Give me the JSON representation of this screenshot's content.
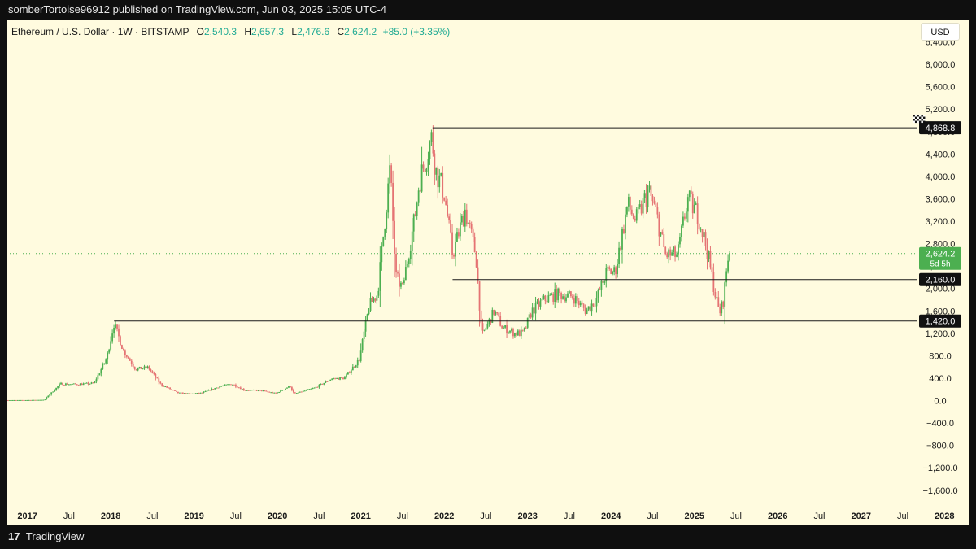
{
  "header": {
    "publisher_line": "somberTortoise96912 published on TradingView.com, Jun 03, 2025 15:05 UTC-4"
  },
  "legend": {
    "symbol": "Ethereum / U.S. Dollar · 1W · BITSTAMP",
    "open_label": "O",
    "open": "2,540.3",
    "high_label": "H",
    "high": "2,657.3",
    "low_label": "L",
    "low": "2,476.6",
    "close_label": "C",
    "close": "2,624.2",
    "change": "+85.0 (+3.35%)"
  },
  "currency_button": "USD",
  "price_badge": {
    "value": "2,624.2",
    "countdown": "5d 5h"
  },
  "footer": {
    "logo_mark": "17",
    "brand": "TradingView"
  },
  "colors": {
    "background": "#fffbdf",
    "up": "#4caf50",
    "down": "#e57373",
    "level_line": "#1a1a1a",
    "current_price": "#4caf50"
  },
  "icons": {
    "target_flag": "checkered-flag-icon"
  },
  "chart_data": {
    "type": "candlestick",
    "symbol": "ETHUSD",
    "interval": "1W",
    "y_axis": {
      "labels": [
        "6,400.0",
        "6,000.0",
        "5,600.0",
        "5,200.0",
        "4,800.0",
        "4,400.0",
        "4,000.0",
        "3,600.0",
        "3,200.0",
        "2,800.0",
        "2,400.0",
        "2,000.0",
        "1,600.0",
        "1,200.0",
        "800.0",
        "400.0",
        "0.0",
        "−400.0",
        "−800.0",
        "−1,200.0",
        "−1,600.0"
      ],
      "ticks": [
        6400,
        6000,
        5600,
        5200,
        4800,
        4400,
        4000,
        3600,
        3200,
        2800,
        2400,
        2000,
        1600,
        1200,
        800,
        400,
        0,
        -400,
        -800,
        -1200,
        -1600
      ],
      "ylim": [
        -1850,
        6800
      ]
    },
    "x_axis": {
      "labels": [
        "2017",
        "Jul",
        "2018",
        "Jul",
        "2019",
        "Jul",
        "2020",
        "Jul",
        "2021",
        "Jul",
        "2022",
        "Jul",
        "2023",
        "Jul",
        "2024",
        "Jul",
        "2025",
        "Jul",
        "2026",
        "Jul",
        "2027",
        "Jul",
        "2028"
      ],
      "ticks": [
        2017.0,
        2017.5,
        2018.0,
        2018.5,
        2019.0,
        2019.5,
        2020.0,
        2020.5,
        2021.0,
        2021.5,
        2022.0,
        2022.5,
        2023.0,
        2023.5,
        2024.0,
        2024.5,
        2025.0,
        2025.5,
        2026.0,
        2026.5,
        2027.0,
        2027.5,
        2028.0
      ],
      "bold": [
        "2017",
        "2018",
        "2019",
        "2020",
        "2021",
        "2022",
        "2023",
        "2024",
        "2025",
        "2026",
        "2027",
        "2028"
      ],
      "xlim": [
        2016.75,
        2028.3
      ]
    },
    "price_path": [
      [
        2016.75,
        8
      ],
      [
        2017.0,
        9
      ],
      [
        2017.2,
        14
      ],
      [
        2017.4,
        300
      ],
      [
        2017.6,
        290
      ],
      [
        2017.8,
        310
      ],
      [
        2017.95,
        750
      ],
      [
        2018.04,
        1380
      ],
      [
        2018.15,
        900
      ],
      [
        2018.3,
        560
      ],
      [
        2018.45,
        590
      ],
      [
        2018.6,
        290
      ],
      [
        2018.8,
        140
      ],
      [
        2018.95,
        120
      ],
      [
        2019.1,
        140
      ],
      [
        2019.3,
        250
      ],
      [
        2019.45,
        300
      ],
      [
        2019.6,
        190
      ],
      [
        2019.8,
        180
      ],
      [
        2019.98,
        130
      ],
      [
        2020.15,
        260
      ],
      [
        2020.2,
        120
      ],
      [
        2020.45,
        230
      ],
      [
        2020.65,
        390
      ],
      [
        2020.8,
        400
      ],
      [
        2020.98,
        730
      ],
      [
        2021.1,
        1700
      ],
      [
        2021.2,
        1900
      ],
      [
        2021.35,
        4150
      ],
      [
        2021.42,
        2200
      ],
      [
        2021.5,
        2000
      ],
      [
        2021.65,
        3300
      ],
      [
        2021.7,
        3900
      ],
      [
        2021.85,
        4700
      ],
      [
        2021.9,
        4100
      ],
      [
        2022.0,
        3700
      ],
      [
        2022.1,
        2600
      ],
      [
        2022.25,
        3400
      ],
      [
        2022.38,
        2600
      ],
      [
        2022.45,
        1150
      ],
      [
        2022.6,
        1600
      ],
      [
        2022.7,
        1300
      ],
      [
        2022.85,
        1200
      ],
      [
        2022.95,
        1200
      ],
      [
        2023.05,
        1600
      ],
      [
        2023.2,
        1800
      ],
      [
        2023.35,
        1900
      ],
      [
        2023.55,
        1850
      ],
      [
        2023.7,
        1600
      ],
      [
        2023.82,
        1800
      ],
      [
        2023.95,
        2300
      ],
      [
        2024.05,
        2300
      ],
      [
        2024.2,
        3500
      ],
      [
        2024.3,
        3200
      ],
      [
        2024.45,
        3750
      ],
      [
        2024.55,
        3300
      ],
      [
        2024.65,
        2600
      ],
      [
        2024.8,
        2600
      ],
      [
        2024.92,
        3600
      ],
      [
        2025.05,
        3300
      ],
      [
        2025.15,
        2700
      ],
      [
        2025.25,
        1900
      ],
      [
        2025.3,
        1550
      ],
      [
        2025.35,
        1800
      ],
      [
        2025.4,
        2550
      ],
      [
        2025.44,
        2624.2
      ]
    ],
    "horizontal_levels": [
      {
        "price": 4868.8,
        "label": "4,868.8",
        "start": 2021.86
      },
      {
        "price": 2160.0,
        "label": "2,160.0",
        "start": 2022.1
      },
      {
        "price": 1420.0,
        "label": "1,420.0",
        "start": 2018.04
      }
    ],
    "current_price": 2624.2,
    "target_marker": {
      "year": 2027.68,
      "price": 4868.8
    }
  }
}
